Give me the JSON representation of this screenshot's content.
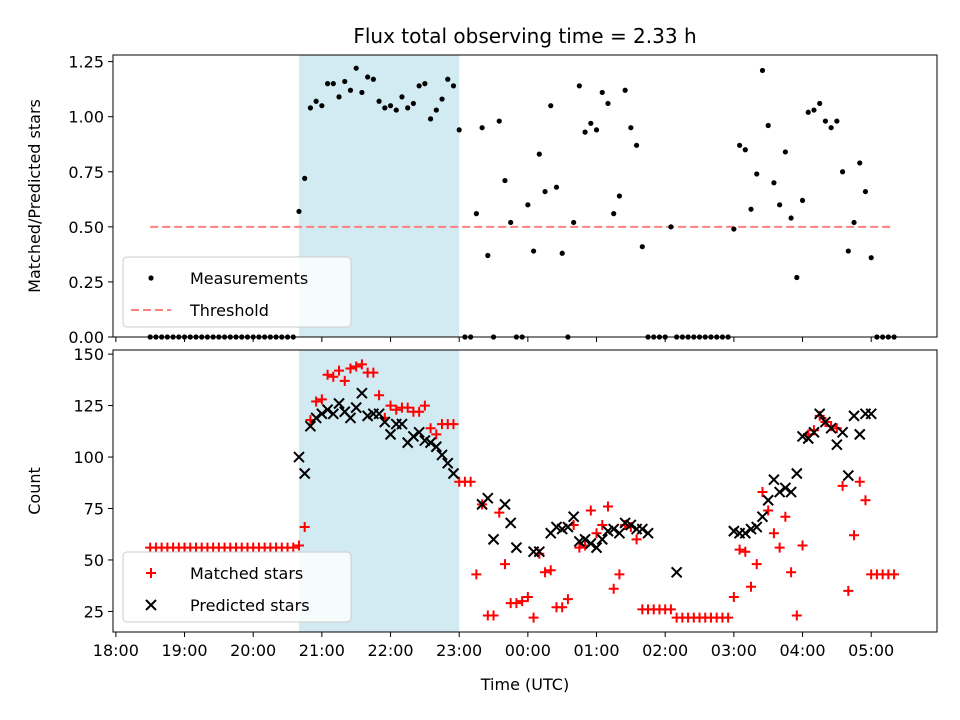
{
  "figure": {
    "title": "Flux total observing time = 2.33 h"
  },
  "chart_data": [
    {
      "type": "scatter",
      "id": "ratio",
      "ylabel": "Matched/Predicted stars",
      "xlabel": "",
      "ylim": [
        0.0,
        1.28
      ],
      "yticks": [
        "0.00",
        "0.25",
        "0.50",
        "0.75",
        "1.00",
        "1.25"
      ],
      "highlight_span": [
        "20:40",
        "23:00"
      ],
      "highlight_color": "#add8e6",
      "legend": {
        "placement": "lower-left",
        "entries": [
          "Measurements",
          "Threshold"
        ]
      },
      "threshold": {
        "name": "Threshold",
        "value": 0.5,
        "x_range": [
          "18:30",
          "05:20"
        ],
        "color": "#ff7f7f"
      },
      "series": [
        {
          "name": "Measurements",
          "color": "#000000",
          "x": [
            "18:30",
            "18:35",
            "18:40",
            "18:45",
            "18:50",
            "18:55",
            "19:00",
            "19:05",
            "19:10",
            "19:15",
            "19:20",
            "19:25",
            "19:30",
            "19:35",
            "19:40",
            "19:45",
            "19:50",
            "19:55",
            "20:00",
            "20:05",
            "20:10",
            "20:15",
            "20:20",
            "20:25",
            "20:30",
            "20:35",
            "20:40",
            "20:45",
            "20:50",
            "20:55",
            "21:00",
            "21:05",
            "21:10",
            "21:15",
            "21:20",
            "21:25",
            "21:30",
            "21:35",
            "21:40",
            "21:45",
            "21:50",
            "21:55",
            "22:00",
            "22:05",
            "22:10",
            "22:15",
            "22:20",
            "22:25",
            "22:30",
            "22:35",
            "22:40",
            "22:45",
            "22:50",
            "22:55",
            "23:00",
            "23:05",
            "23:10",
            "23:15",
            "23:20",
            "23:25",
            "23:30",
            "23:35",
            "23:40",
            "23:45",
            "23:50",
            "23:55",
            "00:00",
            "00:05",
            "00:10",
            "00:15",
            "00:20",
            "00:25",
            "00:30",
            "00:35",
            "00:40",
            "00:45",
            "00:50",
            "00:55",
            "01:00",
            "01:05",
            "01:10",
            "01:15",
            "01:20",
            "01:25",
            "01:30",
            "01:35",
            "01:40",
            "01:45",
            "01:50",
            "01:55",
            "02:00",
            "02:05",
            "02:10",
            "02:15",
            "02:20",
            "02:25",
            "02:30",
            "02:35",
            "02:40",
            "02:45",
            "02:50",
            "02:55",
            "03:00",
            "03:05",
            "03:10",
            "03:15",
            "03:20",
            "03:25",
            "03:30",
            "03:35",
            "03:40",
            "03:45",
            "03:50",
            "03:55",
            "04:00",
            "04:05",
            "04:10",
            "04:15",
            "04:20",
            "04:25",
            "04:30",
            "04:35",
            "04:40",
            "04:45",
            "04:50",
            "04:55",
            "05:00",
            "05:05",
            "05:10",
            "05:15",
            "05:20"
          ],
          "y": [
            0,
            0,
            0,
            0,
            0,
            0,
            0,
            0,
            0,
            0,
            0,
            0,
            0,
            0,
            0,
            0,
            0,
            0,
            0,
            0,
            0,
            0,
            0,
            0,
            0,
            0,
            0.57,
            0.72,
            1.04,
            1.07,
            1.05,
            1.15,
            1.15,
            1.09,
            1.16,
            1.12,
            1.22,
            1.11,
            1.18,
            1.17,
            1.07,
            1.04,
            1.05,
            1.03,
            1.09,
            1.04,
            1.06,
            1.14,
            1.15,
            0.99,
            1.03,
            1.08,
            1.17,
            1.14,
            0.94,
            0,
            0,
            0.56,
            0.95,
            0.37,
            0,
            0.98,
            0.71,
            0.52,
            0,
            0,
            0.6,
            0.39,
            0.83,
            0.66,
            1.05,
            0.68,
            0.38,
            0,
            0.52,
            1.14,
            0.93,
            0.97,
            0.94,
            1.11,
            1.06,
            0.56,
            0.64,
            1.12,
            0.95,
            0.87,
            0.41,
            0,
            0,
            0,
            0,
            0.5,
            0,
            0,
            0,
            0,
            0,
            0,
            0,
            0,
            0,
            0,
            0.49,
            0.87,
            0.85,
            0.58,
            0.74,
            1.21,
            0.96,
            0.7,
            0.6,
            0.84,
            0.54,
            0.27,
            0.62,
            1.02,
            1.03,
            1.06,
            0.98,
            0.95,
            0.98,
            0.75,
            0.39,
            0.52,
            0.79,
            0.66,
            0.36,
            0,
            0,
            0,
            0
          ]
        }
      ]
    },
    {
      "type": "scatter",
      "id": "count",
      "ylabel": "Count",
      "xlabel": "Time (UTC)",
      "ylim": [
        15,
        152
      ],
      "yticks": [
        "25",
        "50",
        "75",
        "100",
        "125",
        "150"
      ],
      "xticks": [
        "18:00",
        "19:00",
        "20:00",
        "21:00",
        "22:00",
        "23:00",
        "00:00",
        "01:00",
        "02:00",
        "03:00",
        "04:00",
        "05:00"
      ],
      "highlight_span": [
        "20:40",
        "23:00"
      ],
      "highlight_color": "#add8e6",
      "legend": {
        "placement": "lower-left",
        "entries": [
          "Matched stars",
          "Predicted stars"
        ]
      },
      "series": [
        {
          "name": "Matched stars",
          "marker": "plus",
          "color": "#ff0000",
          "x": [
            "18:30",
            "18:35",
            "18:40",
            "18:45",
            "18:50",
            "18:55",
            "19:00",
            "19:05",
            "19:10",
            "19:15",
            "19:20",
            "19:25",
            "19:30",
            "19:35",
            "19:40",
            "19:45",
            "19:50",
            "19:55",
            "20:00",
            "20:05",
            "20:10",
            "20:15",
            "20:20",
            "20:25",
            "20:30",
            "20:35",
            "20:40",
            "20:45",
            "20:50",
            "20:55",
            "21:00",
            "21:05",
            "21:10",
            "21:15",
            "21:20",
            "21:25",
            "21:30",
            "21:35",
            "21:40",
            "21:45",
            "21:50",
            "21:55",
            "22:00",
            "22:05",
            "22:10",
            "22:15",
            "22:20",
            "22:25",
            "22:30",
            "22:35",
            "22:40",
            "22:45",
            "22:50",
            "22:55",
            "23:00",
            "23:05",
            "23:10",
            "23:15",
            "23:20",
            "23:25",
            "23:30",
            "23:35",
            "23:40",
            "23:45",
            "23:50",
            "23:55",
            "00:00",
            "00:05",
            "00:10",
            "00:15",
            "00:20",
            "00:25",
            "00:30",
            "00:35",
            "00:40",
            "00:45",
            "00:50",
            "00:55",
            "01:00",
            "01:05",
            "01:10",
            "01:15",
            "01:20",
            "01:25",
            "01:30",
            "01:35",
            "01:40",
            "01:45",
            "01:50",
            "01:55",
            "02:00",
            "02:05",
            "02:10",
            "02:15",
            "02:20",
            "02:25",
            "02:30",
            "02:35",
            "02:40",
            "02:45",
            "02:50",
            "02:55",
            "03:00",
            "03:05",
            "03:10",
            "03:15",
            "03:20",
            "03:25",
            "03:30",
            "03:35",
            "03:40",
            "03:45",
            "03:50",
            "03:55",
            "04:00",
            "04:05",
            "04:10",
            "04:15",
            "04:20",
            "04:25",
            "04:30",
            "04:35",
            "04:40",
            "04:45",
            "04:50",
            "04:55",
            "05:00",
            "05:05",
            "05:10",
            "05:15",
            "05:20"
          ],
          "y": [
            56,
            56,
            56,
            56,
            56,
            56,
            56,
            56,
            56,
            56,
            56,
            56,
            56,
            56,
            56,
            56,
            56,
            56,
            56,
            56,
            56,
            56,
            56,
            56,
            56,
            56,
            57,
            66,
            118,
            127,
            128,
            140,
            139,
            142,
            137,
            143,
            144,
            145,
            141,
            141,
            130,
            119,
            125,
            123,
            124,
            124,
            122,
            122,
            125,
            114,
            111,
            116,
            116,
            116,
            88,
            88,
            88,
            43,
            77,
            23,
            23,
            73,
            48,
            29,
            29,
            30,
            32,
            22,
            53,
            44,
            45,
            27,
            27,
            31,
            67,
            56,
            57,
            74,
            63,
            67,
            76,
            36,
            43,
            67,
            66,
            60,
            26,
            26,
            26,
            26,
            26,
            26,
            22,
            22,
            22,
            22,
            22,
            22,
            22,
            22,
            22,
            22,
            32,
            55,
            54,
            37,
            48,
            83,
            74,
            63,
            56,
            71,
            44,
            23,
            57,
            111,
            113,
            120,
            117,
            115,
            114,
            86,
            35,
            62,
            88,
            79,
            43,
            43,
            43,
            43,
            43
          ]
        },
        {
          "name": "Predicted stars",
          "marker": "x",
          "color": "#000000",
          "x": [
            "20:40",
            "20:45",
            "20:50",
            "20:55",
            "21:00",
            "21:05",
            "21:10",
            "21:15",
            "21:20",
            "21:25",
            "21:30",
            "21:35",
            "21:40",
            "21:45",
            "21:50",
            "21:55",
            "22:00",
            "22:05",
            "22:10",
            "22:15",
            "22:20",
            "22:25",
            "22:30",
            "22:35",
            "22:40",
            "22:45",
            "22:50",
            "22:55",
            "23:00",
            "23:20",
            "23:25",
            "23:30",
            "23:40",
            "23:45",
            "23:50",
            "24:05",
            "24:10",
            "24:20",
            "24:25",
            "24:30",
            "24:35",
            "24:40",
            "24:45",
            "24:50",
            "24:55",
            "25:00",
            "25:05",
            "25:10",
            "25:15",
            "25:20",
            "25:25",
            "25:30",
            "25:35",
            "25:40",
            "25:45",
            "25:50",
            "26:10",
            "27:00",
            "27:05",
            "27:10",
            "27:15",
            "27:20",
            "27:25",
            "27:30",
            "27:35",
            "27:40",
            "27:45",
            "27:50",
            "27:55",
            "28:00",
            "28:05",
            "28:10",
            "28:15",
            "28:20",
            "28:25",
            "28:30",
            "28:35",
            "28:40",
            "28:45",
            "28:50",
            "28:55",
            "29:00"
          ],
          "y": [
            100,
            92,
            115,
            119,
            121,
            123,
            121,
            126,
            122,
            119,
            124,
            131,
            120,
            121,
            121,
            117,
            111,
            116,
            116,
            107,
            110,
            112,
            108,
            107,
            105,
            101,
            97,
            92,
            null,
            77,
            80,
            60,
            77,
            68,
            56,
            54,
            54,
            63,
            66,
            65,
            66,
            71,
            59,
            60,
            58,
            56,
            60,
            64,
            65,
            63,
            68,
            67,
            65,
            65,
            63,
            null,
            44,
            64,
            63,
            63,
            65,
            66,
            71,
            79,
            89,
            83,
            85,
            83,
            92,
            110,
            109,
            112,
            121,
            117,
            114,
            106,
            112,
            91,
            120,
            111,
            121,
            121
          ]
        }
      ]
    }
  ]
}
